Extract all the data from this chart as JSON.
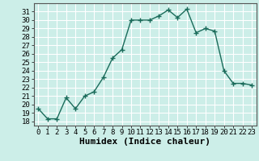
{
  "x": [
    0,
    1,
    2,
    3,
    4,
    5,
    6,
    7,
    8,
    9,
    10,
    11,
    12,
    13,
    14,
    15,
    16,
    17,
    18,
    19,
    20,
    21,
    22,
    23
  ],
  "y": [
    19.5,
    18.3,
    18.3,
    20.8,
    19.5,
    21.0,
    21.5,
    23.2,
    25.5,
    26.5,
    30.0,
    30.0,
    30.0,
    30.5,
    31.2,
    30.3,
    31.3,
    28.5,
    29.0,
    28.7,
    24.0,
    22.5,
    22.5,
    22.3
  ],
  "title": "",
  "xlabel": "Humidex (Indice chaleur)",
  "ylabel": "",
  "xlim": [
    -0.5,
    23.5
  ],
  "ylim": [
    17.5,
    32.0
  ],
  "yticks": [
    18,
    19,
    20,
    21,
    22,
    23,
    24,
    25,
    26,
    27,
    28,
    29,
    30,
    31
  ],
  "xticks": [
    0,
    1,
    2,
    3,
    4,
    5,
    6,
    7,
    8,
    9,
    10,
    11,
    12,
    13,
    14,
    15,
    16,
    17,
    18,
    19,
    20,
    21,
    22,
    23
  ],
  "line_color": "#1a6b5a",
  "marker": "+",
  "marker_size": 4,
  "marker_linewidth": 1.0,
  "line_width": 1.0,
  "bg_color": "#cceee8",
  "grid_color": "#ffffff",
  "xlabel_fontsize": 8,
  "tick_fontsize": 6.5
}
